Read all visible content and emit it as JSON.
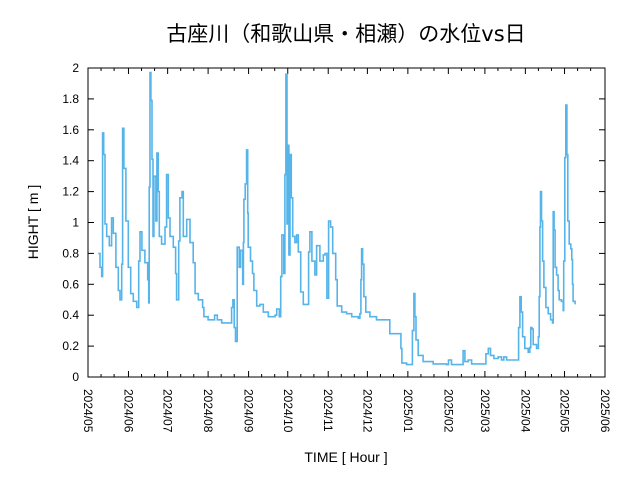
{
  "chart_data": {
    "type": "line",
    "title": "古座川（和歌山県・相瀬）の水位vs日",
    "xlabel": "TIME [ Hour ]",
    "ylabel": "HIGHT [ m ]",
    "x_origin": "2024/05/01",
    "x_unit": "days",
    "xlim": [
      0,
      396
    ],
    "ylim": [
      0,
      2
    ],
    "x_ticks": [
      {
        "label": "2024/05",
        "day": 0
      },
      {
        "label": "2024/06",
        "day": 31
      },
      {
        "label": "2024/07",
        "day": 61
      },
      {
        "label": "2024/08",
        "day": 92
      },
      {
        "label": "2024/09",
        "day": 123
      },
      {
        "label": "2024/10",
        "day": 153
      },
      {
        "label": "2024/11",
        "day": 184
      },
      {
        "label": "2024/12",
        "day": 214
      },
      {
        "label": "2025/01",
        "day": 245
      },
      {
        "label": "2025/02",
        "day": 276
      },
      {
        "label": "2025/03",
        "day": 304
      },
      {
        "label": "2025/04",
        "day": 335
      },
      {
        "label": "2025/05",
        "day": 365
      },
      {
        "label": "2025/06",
        "day": 396
      }
    ],
    "y_ticks": [
      "0",
      "0.2",
      "0.4",
      "0.6",
      "0.8",
      "1",
      "1.2",
      "1.4",
      "1.6",
      "1.8",
      "2"
    ],
    "grid": false,
    "legend": "none",
    "series": [
      {
        "name": "水位",
        "color": "#56b4e9",
        "points": [
          [
            7.9,
            0.8
          ],
          [
            9.2,
            0.71
          ],
          [
            10.5,
            0.65
          ],
          [
            11.2,
            1.58
          ],
          [
            12,
            1.44
          ],
          [
            13,
            0.99
          ],
          [
            14.3,
            0.91
          ],
          [
            16.3,
            0.85
          ],
          [
            18.1,
            1.03
          ],
          [
            19.4,
            0.93
          ],
          [
            21.4,
            0.71
          ],
          [
            23.2,
            0.56
          ],
          [
            24.5,
            0.5
          ],
          [
            25.8,
            0.73
          ],
          [
            26.5,
            1.61
          ],
          [
            27.5,
            1.35
          ],
          [
            29,
            1.01
          ],
          [
            30.9,
            0.71
          ],
          [
            32.7,
            0.54
          ],
          [
            34.7,
            0.49
          ],
          [
            37.3,
            0.45
          ],
          [
            38.8,
            0.75
          ],
          [
            39.8,
            0.94
          ],
          [
            41.3,
            0.82
          ],
          [
            43.6,
            0.74
          ],
          [
            45.7,
            0.63
          ],
          [
            46.5,
            0.48
          ],
          [
            46.9,
            1.23
          ],
          [
            47.5,
            1.97
          ],
          [
            48.2,
            1.79
          ],
          [
            49,
            1.41
          ],
          [
            49.8,
            0.91
          ],
          [
            50.5,
            1.3
          ],
          [
            52,
            1.01
          ],
          [
            52.8,
            1.45
          ],
          [
            53.8,
            1.2
          ],
          [
            54.6,
            0.91
          ],
          [
            56.4,
            0.86
          ],
          [
            59,
            0.97
          ],
          [
            60.2,
            1.31
          ],
          [
            61.5,
            1.03
          ],
          [
            62.8,
            0.91
          ],
          [
            65.3,
            0.84
          ],
          [
            67.1,
            0.67
          ],
          [
            67.9,
            0.5
          ],
          [
            69.5,
            0.88
          ],
          [
            70.4,
            1.16
          ],
          [
            72,
            1.2
          ],
          [
            73,
            0.91
          ],
          [
            75.6,
            1.02
          ],
          [
            78.1,
            0.87
          ],
          [
            80.6,
            0.74
          ],
          [
            82,
            0.54
          ],
          [
            84.5,
            0.5
          ],
          [
            87.8,
            0.45
          ],
          [
            88.8,
            0.39
          ],
          [
            92,
            0.37
          ],
          [
            97,
            0.4
          ],
          [
            99,
            0.37
          ],
          [
            102.4,
            0.35
          ],
          [
            108.7,
            0.35
          ],
          [
            110,
            0.45
          ],
          [
            111,
            0.5
          ],
          [
            112,
            0.32
          ],
          [
            113,
            0.23
          ],
          [
            114.3,
            0.84
          ],
          [
            115.8,
            0.71
          ],
          [
            116.9,
            0.82
          ],
          [
            118.5,
            0.6
          ],
          [
            119,
            0.87
          ],
          [
            119.4,
            1.15
          ],
          [
            120.4,
            1.25
          ],
          [
            121.5,
            1.47
          ],
          [
            122.3,
            1.06
          ],
          [
            122.7,
            0.84
          ],
          [
            124.5,
            0.75
          ],
          [
            126,
            0.67
          ],
          [
            127.1,
            0.56
          ],
          [
            129.2,
            0.46
          ],
          [
            131.7,
            0.47
          ],
          [
            134.3,
            0.42
          ],
          [
            138.1,
            0.39
          ],
          [
            143.2,
            0.4
          ],
          [
            144.5,
            0.44
          ],
          [
            146.5,
            0.39
          ],
          [
            147.6,
            0.65
          ],
          [
            148.5,
            0.92
          ],
          [
            150,
            0.67
          ],
          [
            150.8,
            1.31
          ],
          [
            151.6,
            1.96
          ],
          [
            152.4,
            0.99
          ],
          [
            153.1,
            1.5
          ],
          [
            153.9,
            0.79
          ],
          [
            154.7,
            1.44
          ],
          [
            155.7,
            1.16
          ],
          [
            156.8,
            0.91
          ],
          [
            158.5,
            0.87
          ],
          [
            159.8,
            0.92
          ],
          [
            161.1,
            0.81
          ],
          [
            162.9,
            0.55
          ],
          [
            164.9,
            0.47
          ],
          [
            168,
            0.47
          ],
          [
            169,
            0.81
          ],
          [
            170,
            0.94
          ],
          [
            171.5,
            0.75
          ],
          [
            173.8,
            0.66
          ],
          [
            175.1,
            0.85
          ],
          [
            177.6,
            0.75
          ],
          [
            180.2,
            0.79
          ],
          [
            181.5,
            0.8
          ],
          [
            183,
            0.51
          ],
          [
            184.3,
            1.01
          ],
          [
            185.8,
            0.97
          ],
          [
            187.4,
            0.8
          ],
          [
            189.7,
            0.63
          ],
          [
            190.9,
            0.46
          ],
          [
            194.3,
            0.42
          ],
          [
            198.1,
            0.41
          ],
          [
            202,
            0.39
          ],
          [
            207,
            0.38
          ],
          [
            208.3,
            0.41
          ],
          [
            209,
            0.63
          ],
          [
            209.6,
            0.83
          ],
          [
            210.3,
            0.73
          ],
          [
            211.3,
            0.52
          ],
          [
            212.8,
            0.42
          ],
          [
            215.9,
            0.39
          ],
          [
            221,
            0.37
          ],
          [
            230,
            0.37
          ],
          [
            231.2,
            0.28
          ],
          [
            239,
            0.28
          ],
          [
            239.7,
            0.185
          ],
          [
            240.4,
            0.09
          ],
          [
            244,
            0.08
          ],
          [
            247.8,
            0.08
          ],
          [
            248.5,
            0.3
          ],
          [
            249.6,
            0.54
          ],
          [
            250.4,
            0.39
          ],
          [
            251.2,
            0.24
          ],
          [
            252.9,
            0.14
          ],
          [
            256.7,
            0.1
          ],
          [
            264.4,
            0.085
          ],
          [
            274.6,
            0.08
          ],
          [
            276.1,
            0.11
          ],
          [
            278.4,
            0.08
          ],
          [
            286,
            0.08
          ],
          [
            287.3,
            0.17
          ],
          [
            288.7,
            0.1
          ],
          [
            291.2,
            0.11
          ],
          [
            293.8,
            0.085
          ],
          [
            303.5,
            0.085
          ],
          [
            304.8,
            0.15
          ],
          [
            306.6,
            0.185
          ],
          [
            308.3,
            0.14
          ],
          [
            310.9,
            0.12
          ],
          [
            314.2,
            0.13
          ],
          [
            316.7,
            0.11
          ],
          [
            318.5,
            0.13
          ],
          [
            320.6,
            0.11
          ],
          [
            328.7,
            0.11
          ],
          [
            329.8,
            0.32
          ],
          [
            330.8,
            0.52
          ],
          [
            331.8,
            0.42
          ],
          [
            332.9,
            0.26
          ],
          [
            334.6,
            0.185
          ],
          [
            337.2,
            0.16
          ],
          [
            338.4,
            0.19
          ],
          [
            339.2,
            0.32
          ],
          [
            340,
            0.31
          ],
          [
            341,
            0.21
          ],
          [
            343.6,
            0.185
          ],
          [
            345,
            0.26
          ],
          [
            345.6,
            0.52
          ],
          [
            346.1,
            0.97
          ],
          [
            346.6,
            1.2
          ],
          [
            347.4,
            1.01
          ],
          [
            348.2,
            0.75
          ],
          [
            349.2,
            0.58
          ],
          [
            350.7,
            0.45
          ],
          [
            352.5,
            0.41
          ],
          [
            354.3,
            0.37
          ],
          [
            355.8,
            0.35
          ],
          [
            356.3,
            1.07
          ],
          [
            357,
            0.95
          ],
          [
            357.8,
            0.71
          ],
          [
            358.9,
            0.66
          ],
          [
            360.1,
            0.56
          ],
          [
            360.9,
            0.5
          ],
          [
            362.7,
            0.49
          ],
          [
            364,
            0.43
          ],
          [
            364.4,
            0.75
          ],
          [
            365.2,
            1.42
          ],
          [
            366,
            1.76
          ],
          [
            366.8,
            1.44
          ],
          [
            367.5,
            1.01
          ],
          [
            368.6,
            0.86
          ],
          [
            369.8,
            0.83
          ],
          [
            370.6,
            0.76
          ],
          [
            371.1,
            0.6
          ],
          [
            371.6,
            0.49
          ],
          [
            373.1,
            0.47
          ]
        ]
      }
    ]
  }
}
